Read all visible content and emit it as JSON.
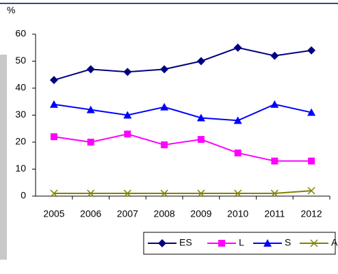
{
  "chart_data": {
    "type": "line",
    "y_label": "%",
    "categories": [
      "2005",
      "2006",
      "2007",
      "2008",
      "2009",
      "2010",
      "2011",
      "2012"
    ],
    "series": [
      {
        "name": "ES",
        "color": "#000080",
        "marker": "diamond",
        "values": [
          43,
          47,
          46,
          47,
          50,
          55,
          52,
          54
        ]
      },
      {
        "name": "L",
        "color": "#ff00ff",
        "marker": "square",
        "values": [
          22,
          20,
          23,
          19,
          21,
          16,
          13,
          13
        ]
      },
      {
        "name": "S",
        "color": "#0000ff",
        "marker": "triangle",
        "values": [
          34,
          32,
          30,
          33,
          29,
          28,
          34,
          31
        ]
      },
      {
        "name": "Autres",
        "color": "#808000",
        "marker": "x",
        "values": [
          1,
          1,
          1,
          1,
          1,
          1,
          1,
          2
        ]
      }
    ],
    "ylim": [
      0,
      60
    ],
    "yticks": [
      0,
      10,
      20,
      30,
      40,
      50,
      60
    ],
    "grid": false,
    "legend": "bottom-right"
  }
}
